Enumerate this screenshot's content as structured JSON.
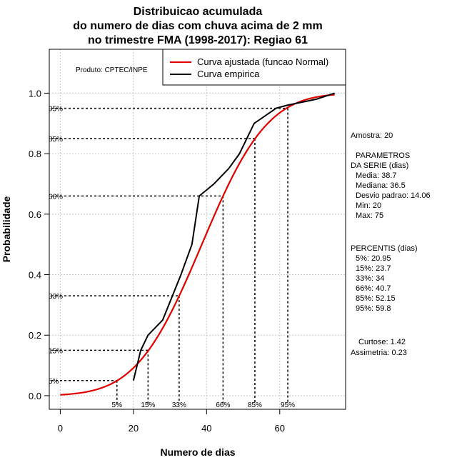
{
  "chart_data": {
    "type": "line",
    "title": [
      "Distribuicao acumulada",
      "do numero de dias com chuva acima de 2 mm",
      "no trimestre FMA (1998-2017): Regiao 61"
    ],
    "xlabel": "Numero de dias",
    "ylabel": "Probabilidade",
    "xlim": [
      -3,
      78
    ],
    "ylim": [
      -0.045,
      1.145
    ],
    "xticks": [
      0,
      20,
      40,
      60
    ],
    "yticks": [
      0.0,
      0.2,
      0.4,
      0.6,
      0.8,
      1.0
    ],
    "grid": true,
    "product_label": "Produto: CPTEC/INPE",
    "legend": {
      "position": "top-right",
      "entries": [
        {
          "label": "Curva ajustada (funcao Normal)",
          "color": "#e00000"
        },
        {
          "label": "Curva empirica",
          "color": "#000000"
        }
      ]
    },
    "fitted": {
      "name": "Curva ajustada (funcao Normal)",
      "mean": 38.7,
      "sd": 14.06,
      "x_range": [
        0,
        75
      ],
      "color": "#e00000"
    },
    "empirical": {
      "name": "Curva empirica",
      "color": "#000000",
      "x": [
        20,
        22,
        24,
        28,
        33,
        36,
        38,
        42,
        46,
        49,
        53,
        59,
        62,
        66,
        70,
        75
      ],
      "y": [
        0.05,
        0.15,
        0.2,
        0.25,
        0.4,
        0.5,
        0.66,
        0.7,
        0.75,
        0.8,
        0.9,
        0.95,
        0.96,
        0.97,
        0.98,
        1.0
      ]
    },
    "percentile_guides": [
      {
        "label": "5%",
        "x": 15.5,
        "y": 0.05
      },
      {
        "label": "15%",
        "x": 24.0,
        "y": 0.15
      },
      {
        "label": "33%",
        "x": 32.5,
        "y": 0.33
      },
      {
        "label": "66%",
        "x": 44.5,
        "y": 0.66
      },
      {
        "label": "85%",
        "x": 53.2,
        "y": 0.85
      },
      {
        "label": "95%",
        "x": 62.2,
        "y": 0.95
      }
    ]
  },
  "sidebar": {
    "amostra": "Amostra: 20",
    "parametros_title_1": "PARAMETROS",
    "parametros_title_2": "DA SERIE (dias)",
    "media": "Media: 38.7",
    "mediana": "Mediana: 36.5",
    "desvio": "Desvio padrao: 14.06",
    "min": "Min: 20",
    "max": "Max: 75",
    "percentis_title": "PERCENTIS (dias)",
    "p5": "5%: 20.95",
    "p15": "15%: 23.7",
    "p33": "33%: 34",
    "p66": "66%: 40.7",
    "p85": "85%: 52.15",
    "p95": "95%: 59.8",
    "curtose": "Curtose: 1.42",
    "assimetria": "Assimetria: 0.23"
  }
}
